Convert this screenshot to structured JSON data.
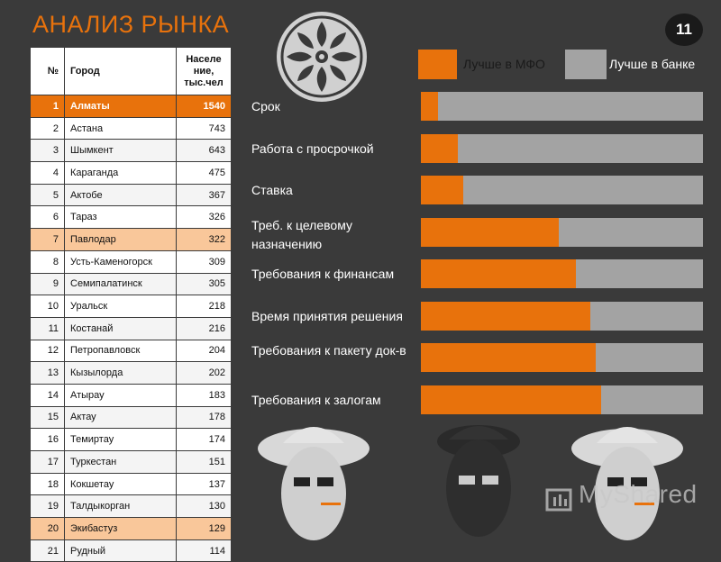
{
  "slide": {
    "title": "АНАЛИЗ РЫНКА",
    "page_number": "11"
  },
  "table": {
    "headers": {
      "num": "№",
      "city": "Город",
      "population": "Населе ние, тыс.чел"
    },
    "rows": [
      {
        "num": "1",
        "city": "Алматы",
        "population": "1540",
        "highlight": "strong"
      },
      {
        "num": "2",
        "city": "Астана",
        "population": "743",
        "highlight": ""
      },
      {
        "num": "3",
        "city": "Шымкент",
        "population": "643",
        "highlight": ""
      },
      {
        "num": "4",
        "city": "Караганда",
        "population": "475",
        "highlight": ""
      },
      {
        "num": "5",
        "city": "Актобе",
        "population": "367",
        "highlight": ""
      },
      {
        "num": "6",
        "city": "Тараз",
        "population": "326",
        "highlight": ""
      },
      {
        "num": "7",
        "city": "Павлодар",
        "population": "322",
        "highlight": "light"
      },
      {
        "num": "8",
        "city": "Усть-Каменогорск",
        "population": "309",
        "highlight": ""
      },
      {
        "num": "9",
        "city": "Семипалатинск",
        "population": "305",
        "highlight": ""
      },
      {
        "num": "10",
        "city": "Уральск",
        "population": "218",
        "highlight": ""
      },
      {
        "num": "11",
        "city": "Костанай",
        "population": "216",
        "highlight": ""
      },
      {
        "num": "12",
        "city": "Петропавловск",
        "population": "204",
        "highlight": ""
      },
      {
        "num": "13",
        "city": "Кызылорда",
        "population": "202",
        "highlight": ""
      },
      {
        "num": "14",
        "city": "Атырау",
        "population": "183",
        "highlight": ""
      },
      {
        "num": "15",
        "city": "Актау",
        "population": "178",
        "highlight": ""
      },
      {
        "num": "16",
        "city": "Темиртау",
        "population": "174",
        "highlight": ""
      },
      {
        "num": "17",
        "city": "Туркестан",
        "population": "151",
        "highlight": ""
      },
      {
        "num": "18",
        "city": "Кокшетау",
        "population": "137",
        "highlight": ""
      },
      {
        "num": "19",
        "city": "Талдыкорган",
        "population": "130",
        "highlight": ""
      },
      {
        "num": "20",
        "city": "Экибастуз",
        "population": "129",
        "highlight": "light"
      },
      {
        "num": "21",
        "city": "Рудный",
        "population": "114",
        "highlight": ""
      }
    ]
  },
  "colors": {
    "accent_orange": "#e8720c",
    "bank_gray": "#a3a3a3",
    "background": "#3a3a3a",
    "light_orange": "#f9c79a"
  },
  "watermark": {
    "text": "MyShared"
  },
  "chart_data": {
    "type": "bar",
    "orientation": "horizontal",
    "stacked": true,
    "normalized_to": 1,
    "categories": [
      "Срок",
      "Работа с просрочкой",
      "Ставка",
      "Треб. к целевому назначению",
      "Требования к финансам",
      "Время принятия решения",
      "Требования к пакету док-в",
      "Требования к залогам"
    ],
    "series": [
      {
        "name": "Лучше в МФО",
        "color": "#e8720c",
        "values": [
          0.06,
          0.13,
          0.15,
          0.49,
          0.55,
          0.6,
          0.62,
          0.64
        ]
      },
      {
        "name": "Лучше в банке",
        "color": "#a3a3a3",
        "values": [
          0.94,
          0.87,
          0.85,
          0.51,
          0.45,
          0.4,
          0.38,
          0.36
        ]
      }
    ],
    "legend_position": "top",
    "grid": false
  }
}
